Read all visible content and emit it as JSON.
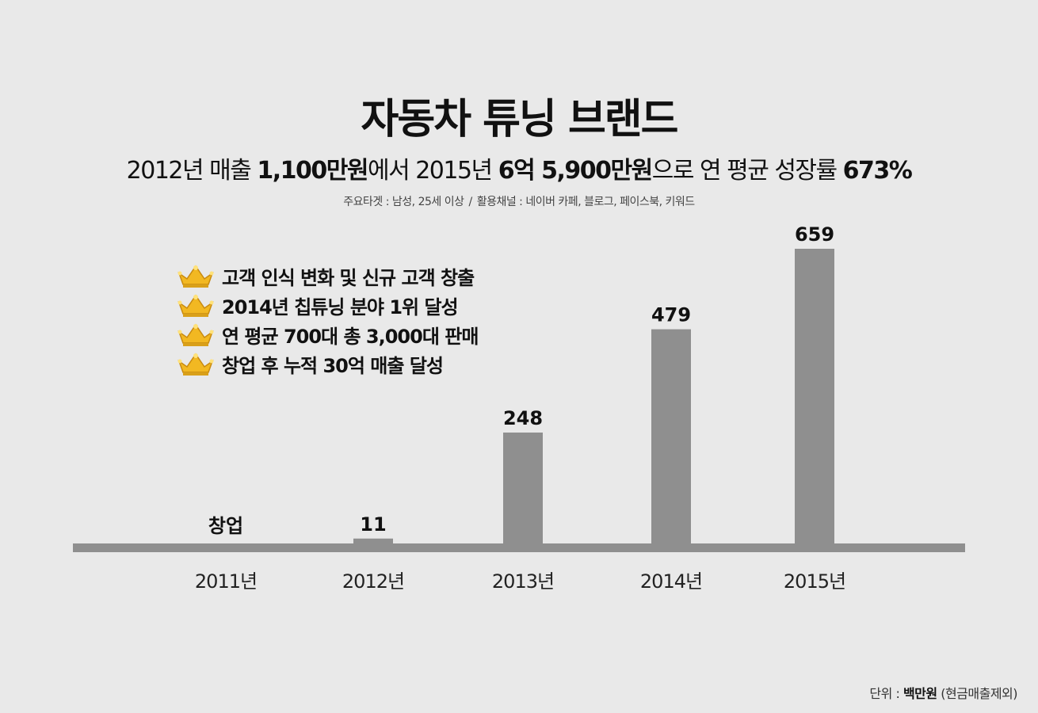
{
  "header": {
    "title": "자동차 튜닝 브랜드",
    "subtitle": {
      "p1": "2012년 매출 ",
      "b1": "1,100만원",
      "p2": "에서 2015년 ",
      "b2": "6억 5,900만원",
      "p3": "으로 연 평균 성장률 ",
      "b3": "673%"
    },
    "meta": {
      "target": "주요타겟 : 남성, 25세 이상",
      "separator": "/",
      "channels": "활용채널 : 네이버 카페, 블로그, 페이스북, 키워드"
    }
  },
  "highlights": [
    {
      "icon": "crown-icon",
      "text": "고객 인식 변화 및 신규 고객 창출"
    },
    {
      "icon": "crown-icon",
      "text": "2014년 칩튜닝 분야 1위 달성"
    },
    {
      "icon": "crown-icon",
      "text": "연 평균 700대 총 3,000대 판매"
    },
    {
      "icon": "crown-icon",
      "text": "창업 후 누적 30억 매출 달성"
    }
  ],
  "colors": {
    "background": "#e9e9e9",
    "bar": "#8f8f8f",
    "crown_gold": "#f2b822"
  },
  "chart_data": {
    "type": "bar",
    "categories": [
      "2011년",
      "2012년",
      "2013년",
      "2014년",
      "2015년"
    ],
    "values": [
      null,
      11,
      248,
      479,
      659
    ],
    "data_labels": [
      "창업",
      "11",
      "248",
      "479",
      "659"
    ],
    "unit_text": {
      "prefix": "단위 : ",
      "unit": "백만원",
      "suffix": " (현금매출제외)"
    },
    "ylim": [
      0,
      659
    ],
    "grid": false,
    "legend": "none"
  }
}
